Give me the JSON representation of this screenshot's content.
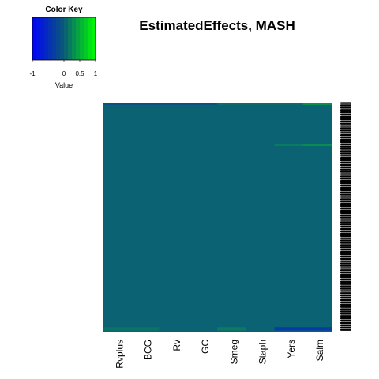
{
  "chart_data": {
    "type": "heatmap",
    "title": "EstimatedEffects, MASH",
    "columns": [
      "Rvplus",
      "BCG",
      "Rv",
      "GC",
      "Smeg",
      "Staph",
      "Yers",
      "Salm"
    ],
    "value_range": [
      -1,
      1
    ],
    "base_value": 0.05,
    "rows": 200,
    "row_labels_legible": false,
    "row_labels_drawn_as": "dense overlapping black labels (illegible)",
    "notable_cells": [
      {
        "row_band": "top",
        "columns": [
          "Rvplus",
          "BCG",
          "Rv",
          "GC"
        ],
        "value": -0.1
      },
      {
        "row_band": "top",
        "columns": [
          "Smeg",
          "Staph",
          "Yers"
        ],
        "value": 0.12
      },
      {
        "row_band": "top",
        "columns": [
          "Salm"
        ],
        "value": 0.35
      },
      {
        "row_band": "upper-middle",
        "columns": [
          "Yers"
        ],
        "value": 0.2
      },
      {
        "row_band": "upper-middle",
        "columns": [
          "Salm"
        ],
        "value": 0.3
      },
      {
        "row_band": "bottom",
        "columns": [
          "Rvplus",
          "BCG"
        ],
        "value": 0.15
      },
      {
        "row_band": "bottom",
        "columns": [
          "Smeg"
        ],
        "value": 0.2
      },
      {
        "row_band": "bottom",
        "columns": [
          "Yers",
          "Salm"
        ],
        "value": -0.35
      }
    ]
  },
  "color_key": {
    "title": "Color Key",
    "tick_labels": [
      "-1",
      "0",
      "0.5",
      "1"
    ],
    "tick_values": [
      -1,
      0,
      0.5,
      1
    ],
    "xlabel": "Value",
    "colors": {
      "low": "#0000ff",
      "mid": "#0b5a78",
      "high": "#00ff00"
    }
  }
}
